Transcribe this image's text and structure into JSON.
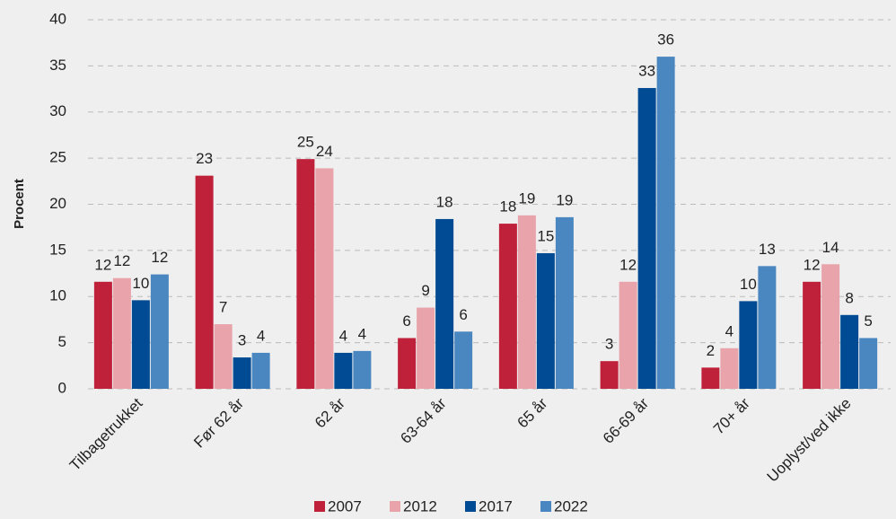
{
  "chart_data": {
    "type": "bar",
    "y_label": "Procent",
    "categories": [
      "Tilbagetrukket",
      "Før 62 år",
      "62 år",
      "63-64 år",
      "65 år",
      "66-69 år",
      "70+ år",
      "Uoplyst/ved ikke"
    ],
    "series": [
      {
        "name": "2007",
        "color": "#c0213a",
        "values": [
          11.6,
          23.1,
          24.9,
          5.5,
          17.9,
          3.0,
          2.3,
          11.6
        ],
        "value_labels": [
          "12",
          "23",
          "25",
          "6",
          "18",
          "3",
          "2",
          "12"
        ]
      },
      {
        "name": "2012",
        "color": "#e8a3ab",
        "values": [
          12.0,
          7.0,
          23.9,
          8.8,
          18.8,
          11.6,
          4.4,
          13.5
        ],
        "value_labels": [
          "12",
          "7",
          "24",
          "9",
          "19",
          "12",
          "4",
          "14"
        ]
      },
      {
        "name": "2017",
        "color": "#004b93",
        "values": [
          9.6,
          3.4,
          3.9,
          18.4,
          14.7,
          32.6,
          9.5,
          8.0
        ],
        "value_labels": [
          "10",
          "3",
          "4",
          "18",
          "15",
          "33",
          "10",
          "8"
        ]
      },
      {
        "name": "2022",
        "color": "#4a86c0",
        "values": [
          12.4,
          3.9,
          4.1,
          6.2,
          18.6,
          36.0,
          13.3,
          5.5
        ],
        "value_labels": [
          "12",
          "4",
          "4",
          "6",
          "19",
          "36",
          "13",
          "5"
        ]
      }
    ],
    "ylim": [
      0,
      40
    ],
    "yticks": [
      0,
      5,
      10,
      15,
      20,
      25,
      30,
      35,
      40
    ],
    "grid": true,
    "legend": "bottom"
  }
}
